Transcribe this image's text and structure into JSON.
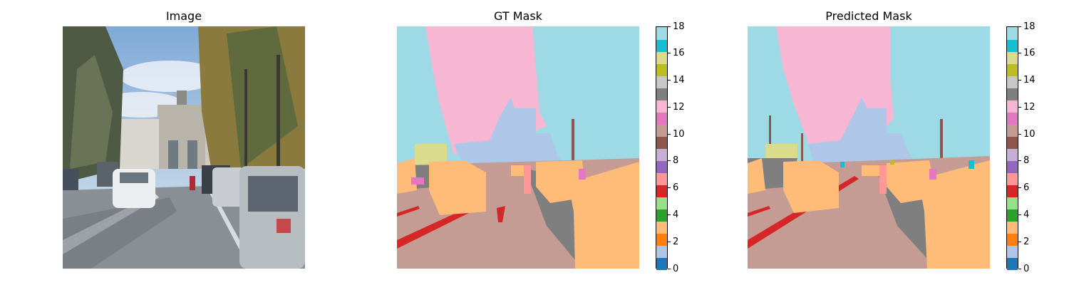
{
  "panels": [
    {
      "id": "image",
      "title": "Image"
    },
    {
      "id": "gt",
      "title": "GT Mask"
    },
    {
      "id": "pred",
      "title": "Predicted Mask"
    }
  ],
  "colorbar": {
    "min": 0,
    "max": 18,
    "tick_values": [
      0,
      2,
      4,
      6,
      8,
      10,
      12,
      14,
      16,
      18
    ],
    "tick_labels": [
      "0",
      "2",
      "4",
      "6",
      "8",
      "10",
      "12",
      "14",
      "16",
      "18"
    ],
    "colormap": "tab20",
    "colors": [
      "#1f77b4",
      "#aec7e8",
      "#ff7f0e",
      "#ffbb78",
      "#2ca02c",
      "#98df8a",
      "#d62728",
      "#ff9896",
      "#9467bd",
      "#c5b0d5",
      "#8c564b",
      "#c49c94",
      "#e377c2",
      "#f7b6d2",
      "#7f7f7f",
      "#c7c7c7",
      "#bcbd22",
      "#dbdb8d",
      "#17becf",
      "#9edae5"
    ]
  },
  "mask_class_colors": {
    "sky": "#9edae5",
    "building": "#aec7e8",
    "vegetation": "#f7b6d2",
    "road": "#c49c94",
    "car": "#ffbb78",
    "sidewalk": "#7f7f7f",
    "road_marking": "#d62728",
    "person": "#ff9896",
    "sign": "#dbdb8d",
    "pole": "#8c564b"
  }
}
